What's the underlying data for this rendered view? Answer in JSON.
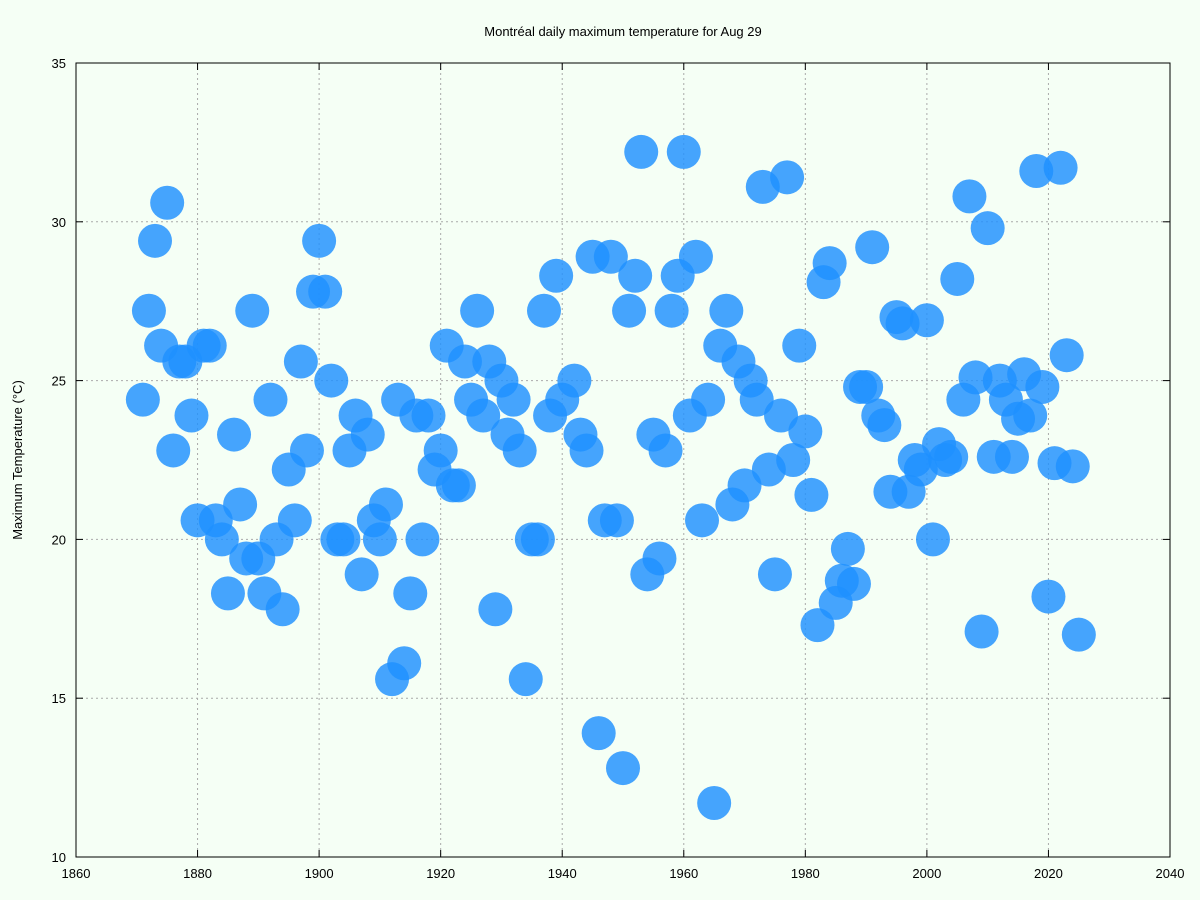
{
  "chart_data": {
    "type": "scatter",
    "title": "Montréal daily maximum temperature for Aug 29",
    "xlabel": "",
    "ylabel": "Maximum Temperature (°C)",
    "xlim": [
      1860,
      2040
    ],
    "ylim": [
      10,
      35
    ],
    "xticks": [
      1860,
      1880,
      1900,
      1920,
      1940,
      1960,
      1980,
      2000,
      2020,
      2040
    ],
    "yticks": [
      10,
      15,
      20,
      25,
      30,
      35
    ],
    "grid": true,
    "marker_color": "#1e90ff",
    "background": "#f5fff5",
    "points": [
      [
        1871,
        24.4
      ],
      [
        1872,
        27.2
      ],
      [
        1873,
        29.4
      ],
      [
        1874,
        26.1
      ],
      [
        1875,
        30.6
      ],
      [
        1876,
        22.8
      ],
      [
        1877,
        25.6
      ],
      [
        1878,
        25.6
      ],
      [
        1879,
        23.9
      ],
      [
        1880,
        20.6
      ],
      [
        1881,
        26.1
      ],
      [
        1882,
        26.1
      ],
      [
        1883,
        20.6
      ],
      [
        1884,
        20.0
      ],
      [
        1885,
        18.3
      ],
      [
        1886,
        23.3
      ],
      [
        1887,
        21.1
      ],
      [
        1888,
        19.4
      ],
      [
        1889,
        27.2
      ],
      [
        1890,
        19.4
      ],
      [
        1891,
        18.3
      ],
      [
        1892,
        24.4
      ],
      [
        1893,
        20.0
      ],
      [
        1894,
        17.8
      ],
      [
        1895,
        22.2
      ],
      [
        1896,
        20.6
      ],
      [
        1897,
        25.6
      ],
      [
        1898,
        22.8
      ],
      [
        1899,
        27.8
      ],
      [
        1900,
        29.4
      ],
      [
        1901,
        27.8
      ],
      [
        1902,
        25.0
      ],
      [
        1903,
        20.0
      ],
      [
        1904,
        20.0
      ],
      [
        1905,
        22.8
      ],
      [
        1906,
        23.9
      ],
      [
        1907,
        18.9
      ],
      [
        1908,
        23.3
      ],
      [
        1909,
        20.6
      ],
      [
        1910,
        20.0
      ],
      [
        1911,
        21.1
      ],
      [
        1912,
        15.6
      ],
      [
        1913,
        24.4
      ],
      [
        1914,
        16.1
      ],
      [
        1915,
        18.3
      ],
      [
        1916,
        23.9
      ],
      [
        1917,
        20.0
      ],
      [
        1918,
        23.9
      ],
      [
        1919,
        22.2
      ],
      [
        1920,
        22.8
      ],
      [
        1921,
        26.1
      ],
      [
        1922,
        21.7
      ],
      [
        1923,
        21.7
      ],
      [
        1924,
        25.6
      ],
      [
        1925,
        24.4
      ],
      [
        1926,
        27.2
      ],
      [
        1927,
        23.9
      ],
      [
        1928,
        25.6
      ],
      [
        1929,
        17.8
      ],
      [
        1930,
        25.0
      ],
      [
        1931,
        23.3
      ],
      [
        1932,
        24.4
      ],
      [
        1933,
        22.8
      ],
      [
        1934,
        15.6
      ],
      [
        1935,
        20.0
      ],
      [
        1936,
        20.0
      ],
      [
        1937,
        27.2
      ],
      [
        1938,
        23.9
      ],
      [
        1939,
        28.3
      ],
      [
        1940,
        24.4
      ],
      [
        1942,
        25.0
      ],
      [
        1943,
        23.3
      ],
      [
        1944,
        22.8
      ],
      [
        1945,
        28.9
      ],
      [
        1946,
        13.9
      ],
      [
        1947,
        20.6
      ],
      [
        1948,
        28.9
      ],
      [
        1949,
        20.6
      ],
      [
        1950,
        12.8
      ],
      [
        1951,
        27.2
      ],
      [
        1952,
        28.3
      ],
      [
        1953,
        32.2
      ],
      [
        1954,
        18.9
      ],
      [
        1955,
        23.3
      ],
      [
        1956,
        19.4
      ],
      [
        1957,
        22.8
      ],
      [
        1958,
        27.2
      ],
      [
        1959,
        28.3
      ],
      [
        1960,
        32.2
      ],
      [
        1961,
        23.9
      ],
      [
        1962,
        28.9
      ],
      [
        1963,
        20.6
      ],
      [
        1964,
        24.4
      ],
      [
        1965,
        11.7
      ],
      [
        1966,
        26.1
      ],
      [
        1967,
        27.2
      ],
      [
        1968,
        21.1
      ],
      [
        1969,
        25.6
      ],
      [
        1970,
        21.7
      ],
      [
        1971,
        25.0
      ],
      [
        1972,
        24.4
      ],
      [
        1973,
        31.1
      ],
      [
        1974,
        22.2
      ],
      [
        1975,
        18.9
      ],
      [
        1976,
        23.9
      ],
      [
        1977,
        31.4
      ],
      [
        1978,
        22.5
      ],
      [
        1979,
        26.1
      ],
      [
        1980,
        23.4
      ],
      [
        1981,
        21.4
      ],
      [
        1982,
        17.3
      ],
      [
        1983,
        28.1
      ],
      [
        1984,
        28.7
      ],
      [
        1985,
        18.0
      ],
      [
        1986,
        18.7
      ],
      [
        1987,
        19.7
      ],
      [
        1988,
        18.6
      ],
      [
        1989,
        24.8
      ],
      [
        1990,
        24.8
      ],
      [
        1991,
        29.2
      ],
      [
        1992,
        23.9
      ],
      [
        1993,
        23.6
      ],
      [
        1994,
        21.5
      ],
      [
        1995,
        27.0
      ],
      [
        1996,
        26.8
      ],
      [
        1997,
        21.5
      ],
      [
        1998,
        22.5
      ],
      [
        1999,
        22.2
      ],
      [
        2000,
        26.9
      ],
      [
        2001,
        20.0
      ],
      [
        2002,
        23.0
      ],
      [
        2003,
        22.5
      ],
      [
        2004,
        22.6
      ],
      [
        2005,
        28.2
      ],
      [
        2006,
        24.4
      ],
      [
        2007,
        30.8
      ],
      [
        2008,
        25.1
      ],
      [
        2009,
        17.1
      ],
      [
        2010,
        29.8
      ],
      [
        2011,
        22.6
      ],
      [
        2012,
        25.0
      ],
      [
        2013,
        24.4
      ],
      [
        2014,
        22.6
      ],
      [
        2015,
        23.8
      ],
      [
        2016,
        25.2
      ],
      [
        2017,
        23.9
      ],
      [
        2018,
        31.6
      ],
      [
        2019,
        24.8
      ],
      [
        2020,
        18.2
      ],
      [
        2021,
        22.4
      ],
      [
        2022,
        31.7
      ],
      [
        2023,
        25.8
      ],
      [
        2024,
        22.3
      ],
      [
        2025,
        17.0
      ]
    ]
  }
}
